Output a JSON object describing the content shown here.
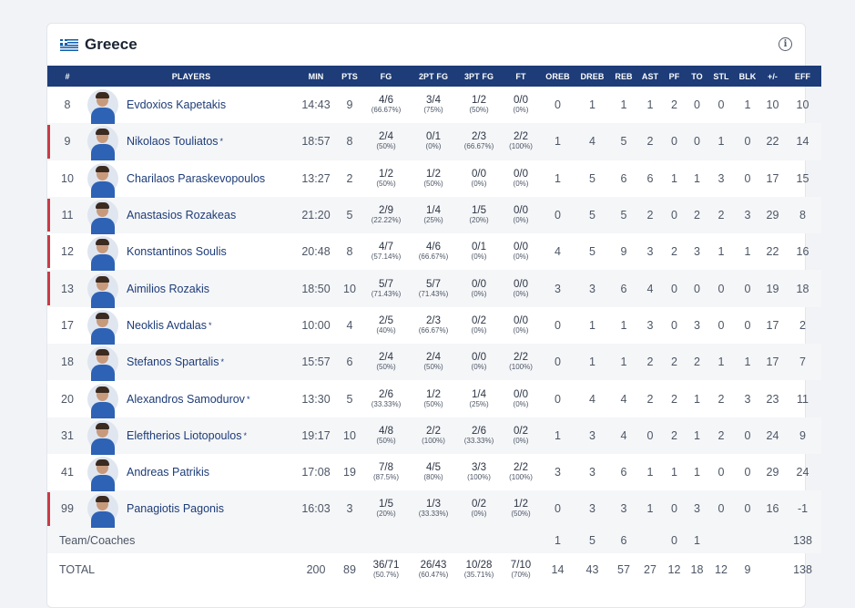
{
  "team": {
    "name": "Greece",
    "flag_icon": "greece-flag-icon",
    "info_icon": "info-icon"
  },
  "columns": [
    "#",
    "PLAYERS",
    "MIN",
    "PTS",
    "FG",
    "2PT FG",
    "3PT FG",
    "FT",
    "OREB",
    "DREB",
    "REB",
    "AST",
    "PF",
    "TO",
    "STL",
    "BLK",
    "+/-",
    "EFF"
  ],
  "players": [
    {
      "no": "8",
      "name": "Evdoxios Kapetakis",
      "starter": false,
      "marker": false,
      "min": "14:43",
      "pts": "9",
      "fg": "4/6",
      "fg_pct": "(66.67%)",
      "fg2": "3/4",
      "fg2_pct": "(75%)",
      "fg3": "1/2",
      "fg3_pct": "(50%)",
      "ft": "0/0",
      "ft_pct": "(0%)",
      "oreb": "0",
      "dreb": "1",
      "reb": "1",
      "ast": "1",
      "pf": "2",
      "to": "0",
      "stl": "0",
      "blk": "1",
      "pm": "10",
      "eff": "10"
    },
    {
      "no": "9",
      "name": "Nikolaos Touliatos",
      "starter": true,
      "marker": true,
      "min": "18:57",
      "pts": "8",
      "fg": "2/4",
      "fg_pct": "(50%)",
      "fg2": "0/1",
      "fg2_pct": "(0%)",
      "fg3": "2/3",
      "fg3_pct": "(66.67%)",
      "ft": "2/2",
      "ft_pct": "(100%)",
      "oreb": "1",
      "dreb": "4",
      "reb": "5",
      "ast": "2",
      "pf": "0",
      "to": "0",
      "stl": "1",
      "blk": "0",
      "pm": "22",
      "eff": "14"
    },
    {
      "no": "10",
      "name": "Charilaos Paraskevopoulos",
      "starter": false,
      "marker": false,
      "min": "13:27",
      "pts": "2",
      "fg": "1/2",
      "fg_pct": "(50%)",
      "fg2": "1/2",
      "fg2_pct": "(50%)",
      "fg3": "0/0",
      "fg3_pct": "(0%)",
      "ft": "0/0",
      "ft_pct": "(0%)",
      "oreb": "1",
      "dreb": "5",
      "reb": "6",
      "ast": "6",
      "pf": "1",
      "to": "1",
      "stl": "3",
      "blk": "0",
      "pm": "17",
      "eff": "15"
    },
    {
      "no": "11",
      "name": "Anastasios Rozakeas",
      "starter": false,
      "marker": true,
      "min": "21:20",
      "pts": "5",
      "fg": "2/9",
      "fg_pct": "(22.22%)",
      "fg2": "1/4",
      "fg2_pct": "(25%)",
      "fg3": "1/5",
      "fg3_pct": "(20%)",
      "ft": "0/0",
      "ft_pct": "(0%)",
      "oreb": "0",
      "dreb": "5",
      "reb": "5",
      "ast": "2",
      "pf": "0",
      "to": "2",
      "stl": "2",
      "blk": "3",
      "pm": "29",
      "eff": "8"
    },
    {
      "no": "12",
      "name": "Konstantinos Soulis",
      "starter": false,
      "marker": true,
      "min": "20:48",
      "pts": "8",
      "fg": "4/7",
      "fg_pct": "(57.14%)",
      "fg2": "4/6",
      "fg2_pct": "(66.67%)",
      "fg3": "0/1",
      "fg3_pct": "(0%)",
      "ft": "0/0",
      "ft_pct": "(0%)",
      "oreb": "4",
      "dreb": "5",
      "reb": "9",
      "ast": "3",
      "pf": "2",
      "to": "3",
      "stl": "1",
      "blk": "1",
      "pm": "22",
      "eff": "16"
    },
    {
      "no": "13",
      "name": "Aimilios Rozakis",
      "starter": false,
      "marker": true,
      "min": "18:50",
      "pts": "10",
      "fg": "5/7",
      "fg_pct": "(71.43%)",
      "fg2": "5/7",
      "fg2_pct": "(71.43%)",
      "fg3": "0/0",
      "fg3_pct": "(0%)",
      "ft": "0/0",
      "ft_pct": "(0%)",
      "oreb": "3",
      "dreb": "3",
      "reb": "6",
      "ast": "4",
      "pf": "0",
      "to": "0",
      "stl": "0",
      "blk": "0",
      "pm": "19",
      "eff": "18"
    },
    {
      "no": "17",
      "name": "Neoklis Avdalas",
      "starter": true,
      "marker": false,
      "min": "10:00",
      "pts": "4",
      "fg": "2/5",
      "fg_pct": "(40%)",
      "fg2": "2/3",
      "fg2_pct": "(66.67%)",
      "fg3": "0/2",
      "fg3_pct": "(0%)",
      "ft": "0/0",
      "ft_pct": "(0%)",
      "oreb": "0",
      "dreb": "1",
      "reb": "1",
      "ast": "3",
      "pf": "0",
      "to": "3",
      "stl": "0",
      "blk": "0",
      "pm": "17",
      "eff": "2"
    },
    {
      "no": "18",
      "name": "Stefanos Spartalis",
      "starter": true,
      "marker": false,
      "min": "15:57",
      "pts": "6",
      "fg": "2/4",
      "fg_pct": "(50%)",
      "fg2": "2/4",
      "fg2_pct": "(50%)",
      "fg3": "0/0",
      "fg3_pct": "(0%)",
      "ft": "2/2",
      "ft_pct": "(100%)",
      "oreb": "0",
      "dreb": "1",
      "reb": "1",
      "ast": "2",
      "pf": "2",
      "to": "2",
      "stl": "1",
      "blk": "1",
      "pm": "17",
      "eff": "7"
    },
    {
      "no": "20",
      "name": "Alexandros Samodurov",
      "starter": true,
      "marker": false,
      "min": "13:30",
      "pts": "5",
      "fg": "2/6",
      "fg_pct": "(33.33%)",
      "fg2": "1/2",
      "fg2_pct": "(50%)",
      "fg3": "1/4",
      "fg3_pct": "(25%)",
      "ft": "0/0",
      "ft_pct": "(0%)",
      "oreb": "0",
      "dreb": "4",
      "reb": "4",
      "ast": "2",
      "pf": "2",
      "to": "1",
      "stl": "2",
      "blk": "3",
      "pm": "23",
      "eff": "11"
    },
    {
      "no": "31",
      "name": "Eleftherios Liotopoulos",
      "starter": true,
      "marker": false,
      "min": "19:17",
      "pts": "10",
      "fg": "4/8",
      "fg_pct": "(50%)",
      "fg2": "2/2",
      "fg2_pct": "(100%)",
      "fg3": "2/6",
      "fg3_pct": "(33.33%)",
      "ft": "0/2",
      "ft_pct": "(0%)",
      "oreb": "1",
      "dreb": "3",
      "reb": "4",
      "ast": "0",
      "pf": "2",
      "to": "1",
      "stl": "2",
      "blk": "0",
      "pm": "24",
      "eff": "9"
    },
    {
      "no": "41",
      "name": "Andreas Patrikis",
      "starter": false,
      "marker": false,
      "min": "17:08",
      "pts": "19",
      "fg": "7/8",
      "fg_pct": "(87.5%)",
      "fg2": "4/5",
      "fg2_pct": "(80%)",
      "fg3": "3/3",
      "fg3_pct": "(100%)",
      "ft": "2/2",
      "ft_pct": "(100%)",
      "oreb": "3",
      "dreb": "3",
      "reb": "6",
      "ast": "1",
      "pf": "1",
      "to": "1",
      "stl": "0",
      "blk": "0",
      "pm": "29",
      "eff": "24"
    },
    {
      "no": "99",
      "name": "Panagiotis Pagonis",
      "starter": false,
      "marker": true,
      "min": "16:03",
      "pts": "3",
      "fg": "1/5",
      "fg_pct": "(20%)",
      "fg2": "1/3",
      "fg2_pct": "(33.33%)",
      "fg3": "0/2",
      "fg3_pct": "(0%)",
      "ft": "1/2",
      "ft_pct": "(50%)",
      "oreb": "0",
      "dreb": "3",
      "reb": "3",
      "ast": "1",
      "pf": "0",
      "to": "3",
      "stl": "0",
      "blk": "0",
      "pm": "16",
      "eff": "-1"
    }
  ],
  "team_row": {
    "label": "Team/Coaches",
    "oreb": "1",
    "dreb": "5",
    "reb": "6",
    "ast": "",
    "pf": "0",
    "to": "1",
    "stl": "",
    "blk": "",
    "pm": "",
    "eff": "138"
  },
  "total_row": {
    "label": "TOTAL",
    "min": "200",
    "pts": "89",
    "fg": "36/71",
    "fg_pct": "(50.7%)",
    "fg2": "26/43",
    "fg2_pct": "(60.47%)",
    "fg3": "10/28",
    "fg3_pct": "(35.71%)",
    "ft": "7/10",
    "ft_pct": "(70%)",
    "oreb": "14",
    "dreb": "43",
    "reb": "57",
    "ast": "27",
    "pf": "12",
    "to": "18",
    "stl": "12",
    "blk": "9",
    "pm": "",
    "eff": "138"
  },
  "starter_mark": "*",
  "colors": {
    "header_bg": "#1d3c78",
    "marker": "#c93a46",
    "link": "#1d3c78"
  }
}
